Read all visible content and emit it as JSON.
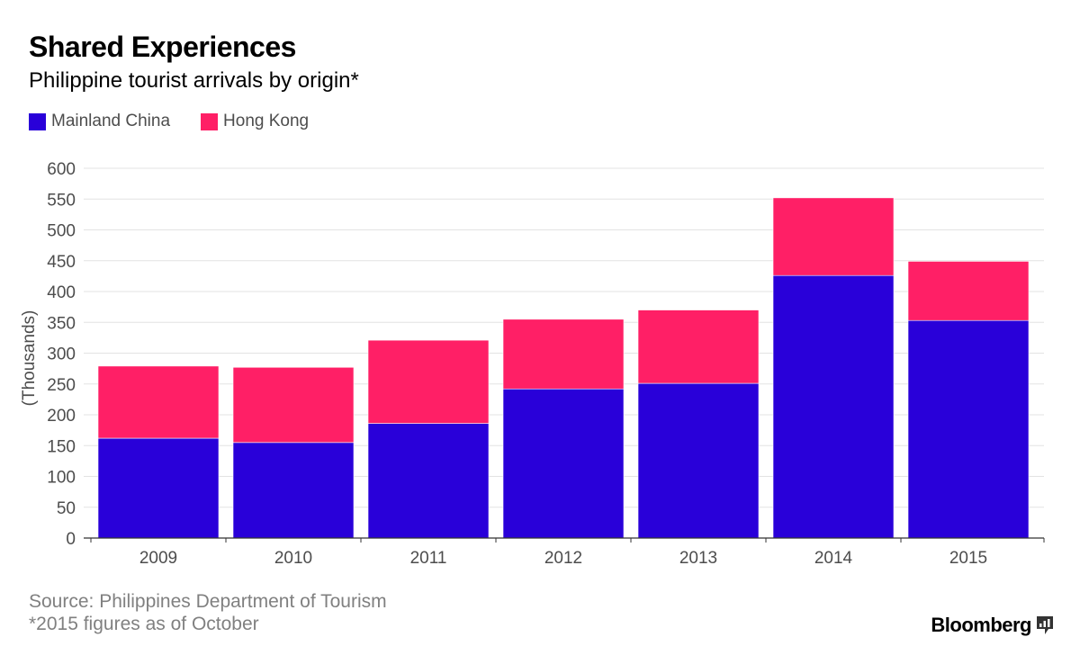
{
  "header": {
    "title": "Shared Experiences",
    "subtitle": "Philippine tourist arrivals by origin*"
  },
  "legend": [
    {
      "label": "Mainland China",
      "color": "#2900d9"
    },
    {
      "label": "Hong Kong",
      "color": "#ff1f66"
    }
  ],
  "footer": {
    "source": "Source: Philippines Department of Tourism",
    "note": "*2015 figures as of October",
    "brand": "Bloomberg",
    "brand_icon": "bloomberg-chart-logo-icon"
  },
  "chart_data": {
    "type": "bar",
    "stacked": true,
    "categories": [
      "2009",
      "2010",
      "2011",
      "2012",
      "2013",
      "2014",
      "2015"
    ],
    "series": [
      {
        "name": "Mainland China",
        "color": "#2900d9",
        "values": [
          162,
          155,
          186,
          242,
          251,
          426,
          353
        ]
      },
      {
        "name": "Hong Kong",
        "color": "#ff1f66",
        "values": [
          117,
          122,
          135,
          113,
          119,
          126,
          96
        ]
      }
    ],
    "title": "Shared Experiences",
    "subtitle": "Philippine tourist arrivals by origin*",
    "xlabel": "",
    "ylabel": "(Thousands)",
    "ylim": [
      0,
      600
    ],
    "yticks": [
      0,
      50,
      100,
      150,
      200,
      250,
      300,
      350,
      400,
      450,
      500,
      550,
      600
    ],
    "grid": true,
    "legend_position": "top-left"
  }
}
